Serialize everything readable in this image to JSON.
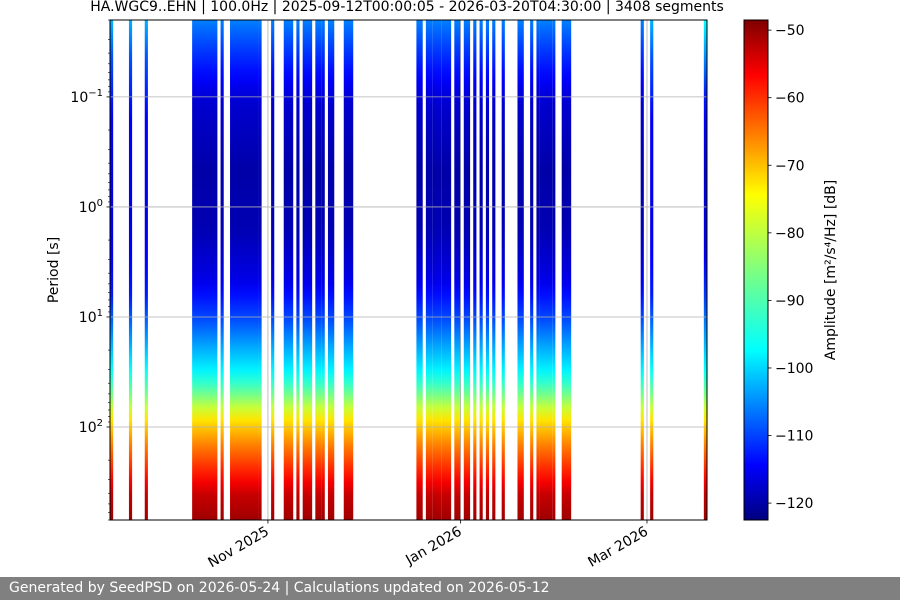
{
  "chart_data": {
    "type": "heatmap",
    "title": "HA.WGC9..EHN | 100.0Hz | 2025-09-12T00:00:05 - 2026-03-20T04:30:00 | 3408 segments",
    "ylabel": "Period [s]",
    "colorbar_label": "Amplitude [m²/s⁴/Hz] [dB]",
    "x_range": [
      "2025-09-12",
      "2026-03-20"
    ],
    "x_ticks": [
      {
        "date": "2025-11-01",
        "label": "Nov 2025"
      },
      {
        "date": "2026-01-01",
        "label": "Jan 2026"
      },
      {
        "date": "2026-03-01",
        "label": "Mar 2026"
      }
    ],
    "y_scale": "log",
    "y_inverted": true,
    "y_range_s": [
      0.02,
      700
    ],
    "y_ticks": [
      {
        "value": 0.1,
        "base": "10",
        "exp": "−1"
      },
      {
        "value": 1,
        "base": "10",
        "exp": "0"
      },
      {
        "value": 10,
        "base": "10",
        "exp": "1"
      },
      {
        "value": 100,
        "base": "10",
        "exp": "2"
      }
    ],
    "colorbar": {
      "min_db": -122.5,
      "max_db": -48.5,
      "ticks": [
        -50,
        -60,
        -70,
        -80,
        -90,
        -100,
        -110,
        -120
      ],
      "tick_labels": [
        "−50",
        "−60",
        "−70",
        "−80",
        "−90",
        "−100",
        "−110",
        "−120"
      ],
      "colormap": "jet"
    },
    "grid": true,
    "data_segments": [
      {
        "start": "2025-09-12",
        "end": "2025-09-13",
        "profile": "lowmid"
      },
      {
        "start": "2025-09-18",
        "end": "2025-09-19",
        "profile": "lowmid"
      },
      {
        "start": "2025-09-23",
        "end": "2025-09-24",
        "profile": "lowmid"
      },
      {
        "start": "2025-10-08",
        "end": "2025-10-16",
        "profile": "low"
      },
      {
        "start": "2025-10-17",
        "end": "2025-10-18",
        "profile": "low"
      },
      {
        "start": "2025-10-20",
        "end": "2025-10-29",
        "profile": "low"
      },
      {
        "start": "2025-10-29",
        "end": "2025-10-30",
        "profile": "low"
      },
      {
        "start": "2025-11-02",
        "end": "2025-11-03",
        "profile": "low"
      },
      {
        "start": "2025-11-06",
        "end": "2025-11-09",
        "profile": "low"
      },
      {
        "start": "2025-11-10",
        "end": "2025-11-11",
        "profile": "low"
      },
      {
        "start": "2025-11-12",
        "end": "2025-11-15",
        "profile": "low"
      },
      {
        "start": "2025-11-16",
        "end": "2025-11-18",
        "profile": "low"
      },
      {
        "start": "2025-11-18",
        "end": "2025-11-19",
        "profile": "low"
      },
      {
        "start": "2025-11-20",
        "end": "2025-11-22",
        "profile": "low"
      },
      {
        "start": "2025-11-25",
        "end": "2025-11-28",
        "profile": "low"
      },
      {
        "start": "2025-12-18",
        "end": "2025-12-20",
        "profile": "low"
      },
      {
        "start": "2025-12-21",
        "end": "2025-12-23",
        "profile": "low"
      },
      {
        "start": "2025-12-23",
        "end": "2025-12-26",
        "profile": "low"
      },
      {
        "start": "2025-12-26",
        "end": "2025-12-29",
        "profile": "low"
      },
      {
        "start": "2025-12-30",
        "end": "2026-01-01",
        "profile": "low"
      },
      {
        "start": "2026-01-02",
        "end": "2026-01-04",
        "profile": "low"
      },
      {
        "start": "2026-01-05",
        "end": "2026-01-06",
        "profile": "low"
      },
      {
        "start": "2026-01-07",
        "end": "2026-01-08",
        "profile": "low"
      },
      {
        "start": "2026-01-09",
        "end": "2026-01-10",
        "profile": "low"
      },
      {
        "start": "2026-01-11",
        "end": "2026-01-12",
        "profile": "low"
      },
      {
        "start": "2026-01-14",
        "end": "2026-01-15",
        "profile": "low"
      },
      {
        "start": "2026-01-19",
        "end": "2026-01-21",
        "profile": "low"
      },
      {
        "start": "2026-01-23",
        "end": "2026-01-24",
        "profile": "low"
      },
      {
        "start": "2026-01-25",
        "end": "2026-01-26",
        "profile": "low"
      },
      {
        "start": "2026-01-26",
        "end": "2026-01-30",
        "profile": "low"
      },
      {
        "start": "2026-01-30",
        "end": "2026-01-31",
        "profile": "low"
      },
      {
        "start": "2026-02-02",
        "end": "2026-02-05",
        "profile": "low"
      },
      {
        "start": "2026-02-27",
        "end": "2026-02-28",
        "profile": "low"
      },
      {
        "start": "2026-03-02",
        "end": "2026-03-03",
        "profile": "lowmid"
      },
      {
        "start": "2026-03-19",
        "end": "2026-03-20",
        "profile": "edge"
      }
    ]
  },
  "footer": {
    "text": "Generated by SeedPSD on 2026-05-24 | Calculations updated on 2026-05-12"
  }
}
